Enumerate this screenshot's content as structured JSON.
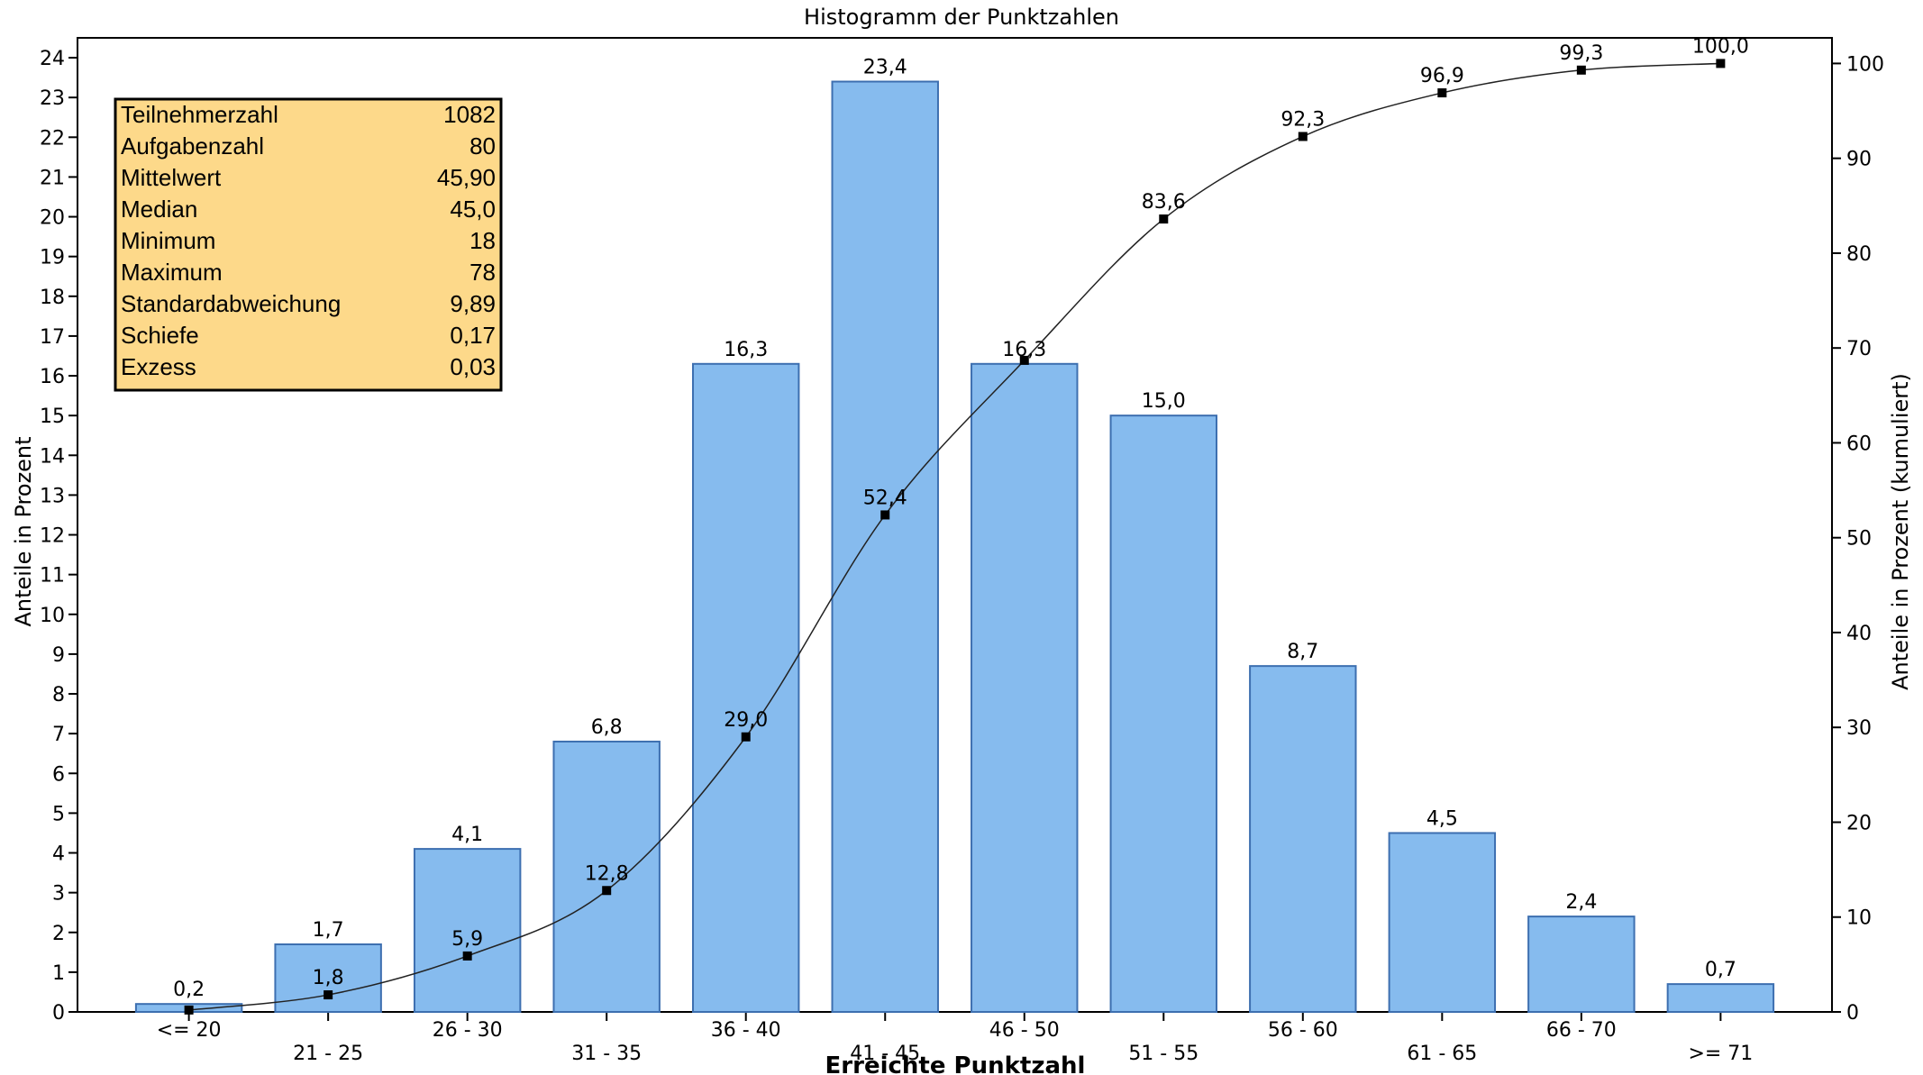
{
  "colors": {
    "bar_fill": "#86bbee",
    "bar_stroke": "#3d6fb0",
    "line": "#222222",
    "stats_fill": "#fdd98a",
    "stats_stroke": "#000000"
  },
  "stats": [
    {
      "label": "Teilnehmerzahl",
      "value": "1082"
    },
    {
      "label": "Aufgabenzahl",
      "value": "80"
    },
    {
      "label": "Mittelwert",
      "value": "45,90"
    },
    {
      "label": "Median",
      "value": "45,0"
    },
    {
      "label": "Minimum",
      "value": "18"
    },
    {
      "label": "Maximum",
      "value": "78"
    },
    {
      "label": "Standardabweichung",
      "value": "9,89"
    },
    {
      "label": "Schiefe",
      "value": "0,17"
    },
    {
      "label": "Exzess",
      "value": "0,03"
    }
  ],
  "chart_data": {
    "type": "bar",
    "title": "Histogramm der Punktzahlen",
    "xlabel": "Erreichte Punktzahl",
    "ylabel": "Anteile in Prozent",
    "y2label": "Anteile in Prozent (kumuliert)",
    "categories": [
      "<= 20",
      "21 - 25",
      "26 - 30",
      "31 - 35",
      "36 - 40",
      "41 - 45",
      "46 - 50",
      "51 - 55",
      "56 - 60",
      "61 - 65",
      "66 - 70",
      ">= 71"
    ],
    "series": [
      {
        "axis": "left",
        "type": "bar",
        "values": [
          0.2,
          1.7,
          4.1,
          6.8,
          16.3,
          23.4,
          16.3,
          15.0,
          8.7,
          4.5,
          2.4,
          0.7
        ],
        "labels": [
          "0,2",
          "1,7",
          "4,1",
          "6,8",
          "16,3",
          "23,4",
          "16,3",
          "15,0",
          "8,7",
          "4,5",
          "2,4",
          "0,7"
        ]
      },
      {
        "axis": "right",
        "type": "line",
        "values": [
          0.2,
          1.8,
          5.9,
          12.8,
          29.0,
          52.4,
          68.7,
          83.6,
          92.3,
          96.9,
          99.3,
          100.0
        ],
        "labels": [
          "",
          "1,8",
          "5,9",
          "12,8",
          "29,0",
          "52,4",
          "",
          "83,6",
          "92,3",
          "96,9",
          "99,3",
          "100,0"
        ]
      }
    ],
    "ylim": [
      0,
      24.5
    ],
    "y2lim": [
      0,
      102.7
    ],
    "yticks": [
      "0",
      "1",
      "2",
      "3",
      "4",
      "5",
      "6",
      "7",
      "8",
      "9",
      "10",
      "11",
      "12",
      "13",
      "14",
      "15",
      "16",
      "17",
      "18",
      "19",
      "20",
      "21",
      "22",
      "23",
      "24"
    ],
    "y2ticks": [
      "0",
      "10",
      "20",
      "30",
      "40",
      "50",
      "60",
      "70",
      "80",
      "90",
      "100"
    ],
    "grid": false,
    "legend": "none"
  }
}
